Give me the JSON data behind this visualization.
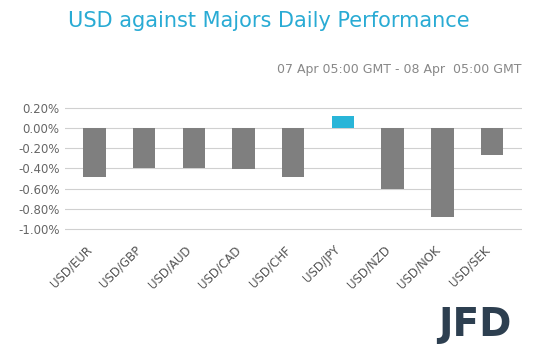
{
  "title": "USD against Majors Daily Performance",
  "subtitle": "07 Apr 05:00 GMT - 08 Apr  05:00 GMT",
  "categories": [
    "USD/EUR",
    "USD/GBP",
    "USD/AUD",
    "USD/CAD",
    "USD/CHF",
    "USD/JPY",
    "USD/NZD",
    "USD/NOK",
    "USD/SEK"
  ],
  "values": [
    -0.0048,
    -0.004,
    -0.004,
    -0.0041,
    -0.0048,
    0.0012,
    -0.006,
    -0.0088,
    -0.0027
  ],
  "bar_colors": [
    "#7f7f7f",
    "#7f7f7f",
    "#7f7f7f",
    "#7f7f7f",
    "#7f7f7f",
    "#29B5D8",
    "#7f7f7f",
    "#7f7f7f",
    "#7f7f7f"
  ],
  "ylim": [
    -0.011,
    0.003
  ],
  "yticks": [
    -0.01,
    -0.008,
    -0.006,
    -0.004,
    -0.002,
    0.0,
    0.002
  ],
  "title_color": "#29ABD4",
  "subtitle_color": "#888888",
  "background_color": "#ffffff",
  "grid_color": "#d0d0d0",
  "title_fontsize": 15,
  "subtitle_fontsize": 9,
  "tick_fontsize": 8.5,
  "logo_text": "JFD",
  "logo_color": "#2d3f50"
}
